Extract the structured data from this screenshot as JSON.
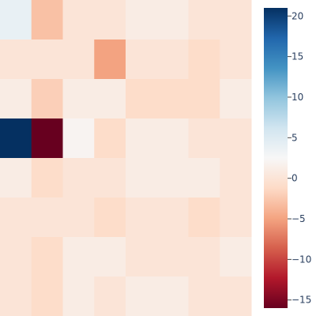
{
  "chart_data": {
    "type": "heatmap",
    "rows": 8,
    "cols": 8,
    "values": [
      [
        4,
        -3,
        0,
        0,
        1,
        1,
        0,
        0
      ],
      [
        0,
        0,
        0,
        -5,
        0,
        0,
        -1,
        0
      ],
      [
        1,
        -2,
        1,
        1,
        -1,
        -1,
        -1,
        1
      ],
      [
        21,
        -16,
        2,
        -1,
        1,
        1,
        0,
        0
      ],
      [
        1,
        -1,
        0,
        0,
        1,
        1,
        1,
        0
      ],
      [
        0,
        0,
        0,
        -1,
        0,
        0,
        -1,
        0
      ],
      [
        0,
        -1,
        1,
        1,
        0,
        0,
        0,
        1
      ],
      [
        0,
        -1,
        1,
        0,
        1,
        1,
        0,
        0
      ]
    ],
    "zmin": -16,
    "zmax": 21,
    "colorbar": {
      "ticks": [
        20,
        15,
        10,
        5,
        0,
        -5,
        -10,
        -15
      ],
      "tick_labels": [
        "20",
        "15",
        "10",
        "5",
        "0",
        "−5",
        "−10",
        "−15"
      ]
    },
    "colorscale": [
      [
        0.0,
        "#67001f"
      ],
      [
        0.1,
        "#b2182b"
      ],
      [
        0.2,
        "#d6604d"
      ],
      [
        0.3,
        "#f4a582"
      ],
      [
        0.4,
        "#fddbc7"
      ],
      [
        0.5,
        "#f7f7f7"
      ],
      [
        0.6,
        "#d1e5f0"
      ],
      [
        0.7,
        "#92c5de"
      ],
      [
        0.8,
        "#4393c3"
      ],
      [
        0.9,
        "#2166ac"
      ],
      [
        1.0,
        "#053061"
      ]
    ],
    "title": "",
    "xlabel": "",
    "ylabel": ""
  }
}
